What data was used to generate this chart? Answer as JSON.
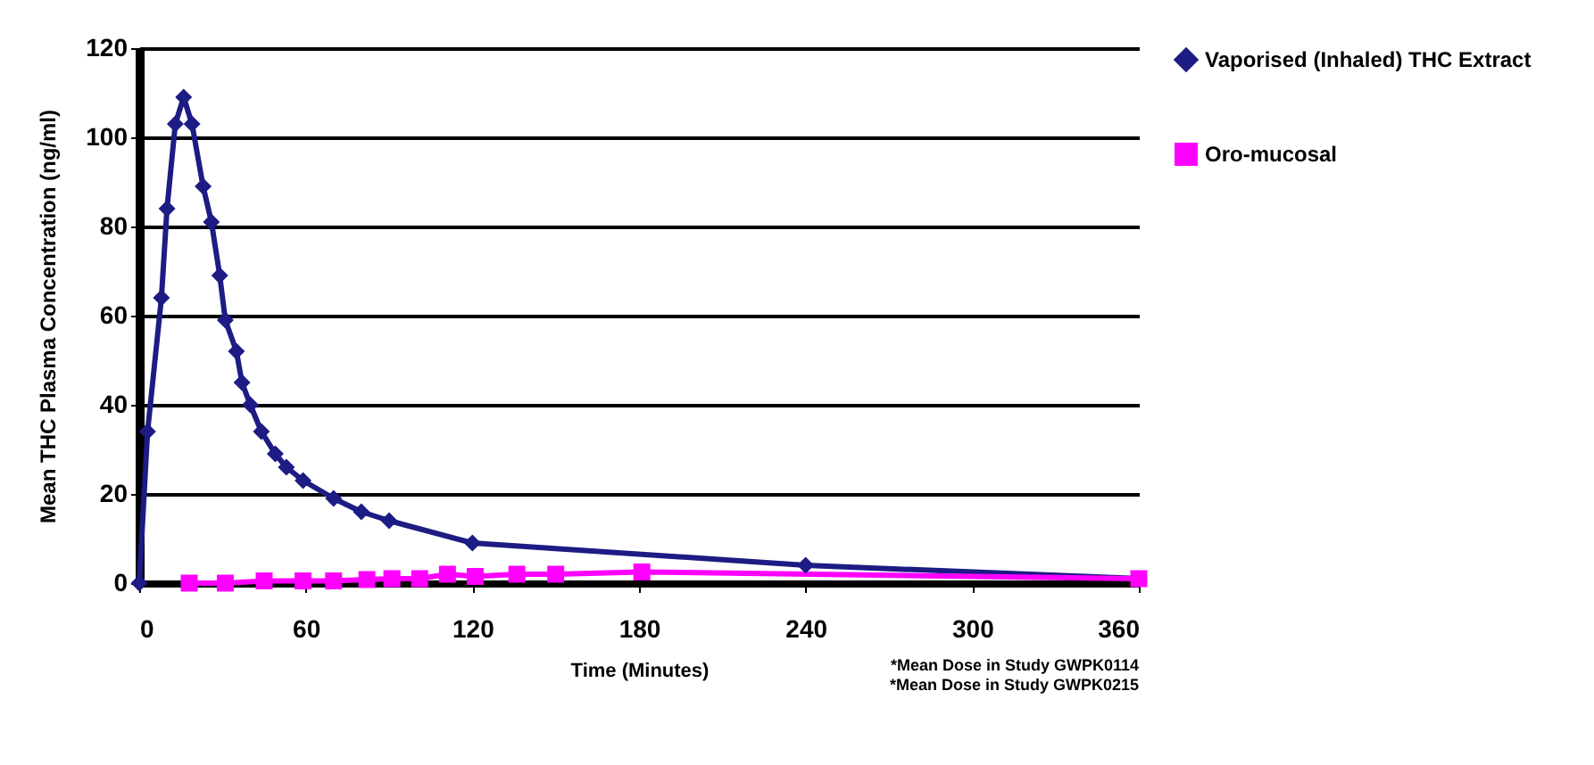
{
  "chart_data": {
    "type": "line",
    "xlabel": "Time (Minutes)",
    "ylabel": "Mean THC Plasma Concentration (ng/ml)",
    "xlim": [
      0,
      360
    ],
    "xticks": [
      0,
      60,
      120,
      180,
      240,
      300,
      360
    ],
    "ylim": [
      0,
      120
    ],
    "yticks": [
      0,
      20,
      40,
      60,
      80,
      100,
      120
    ],
    "grid": "y",
    "legend": "right",
    "annotations": [
      "*Mean Dose in Study GWPK0114",
      "*Mean Dose in Study GWPK0215"
    ],
    "series": [
      {
        "name": "Vaporised (Inhaled) THC Extract",
        "color": "#1c1c84",
        "marker": "diamond",
        "x": [
          0,
          3,
          8,
          10,
          13,
          16,
          19,
          23,
          26,
          29,
          31,
          35,
          37,
          40,
          44,
          49,
          53,
          59,
          70,
          80,
          90,
          120,
          240,
          360
        ],
        "values": [
          0,
          34,
          64,
          84,
          103,
          109,
          103,
          89,
          81,
          69,
          59,
          52,
          45,
          40,
          34,
          29,
          26,
          23,
          19,
          16,
          14,
          9,
          4,
          1
        ]
      },
      {
        "name": "Oro-mucosal",
        "color": "#ff00ff",
        "marker": "square",
        "x": [
          18,
          31,
          45,
          59,
          70,
          82,
          91,
          101,
          111,
          121,
          136,
          150,
          181,
          360
        ],
        "values": [
          0,
          0,
          0.5,
          0.5,
          0.5,
          0.8,
          1,
          1,
          2,
          1.5,
          2,
          2,
          2.5,
          1
        ]
      }
    ]
  }
}
